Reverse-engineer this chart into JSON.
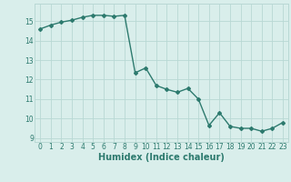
{
  "x": [
    0,
    1,
    2,
    3,
    4,
    5,
    6,
    7,
    8,
    9,
    10,
    11,
    12,
    13,
    14,
    15,
    16,
    17,
    18,
    19,
    20,
    21,
    22,
    23
  ],
  "y": [
    14.6,
    14.8,
    14.95,
    15.05,
    15.2,
    15.3,
    15.3,
    15.25,
    15.3,
    12.35,
    12.6,
    11.7,
    11.5,
    11.35,
    11.55,
    11.0,
    9.65,
    10.3,
    9.6,
    9.5,
    9.5,
    9.35,
    9.5,
    9.8
  ],
  "line_color": "#2d7a6e",
  "marker": "D",
  "marker_size": 2,
  "bg_color": "#d9eeeb",
  "grid_color": "#b8d8d4",
  "xlabel": "Humidex (Indice chaleur)",
  "xlim": [
    -0.5,
    23.5
  ],
  "ylim": [
    8.8,
    15.9
  ],
  "yticks": [
    9,
    10,
    11,
    12,
    13,
    14,
    15
  ],
  "xticks": [
    0,
    1,
    2,
    3,
    4,
    5,
    6,
    7,
    8,
    9,
    10,
    11,
    12,
    13,
    14,
    15,
    16,
    17,
    18,
    19,
    20,
    21,
    22,
    23
  ],
  "tick_label_fontsize": 5.5,
  "xlabel_fontsize": 7.0,
  "line_width": 1.0
}
